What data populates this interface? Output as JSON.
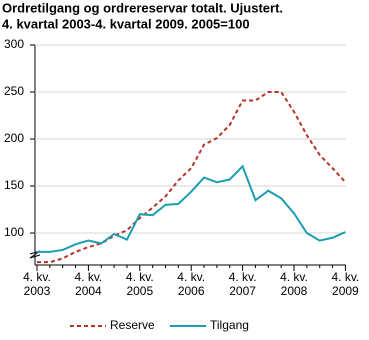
{
  "chart_data": {
    "type": "line",
    "title": "Ordretilgang og ordrereservar totalt. Ujustert.",
    "subtitle": "4. kvartal 2003-4. kvartal 2009. 2005=100",
    "categories": [
      "4. kv. 2003",
      null,
      null,
      null,
      "4. kv. 2004",
      null,
      null,
      null,
      "4. kv. 2005",
      null,
      null,
      null,
      "4. kv. 2006",
      null,
      null,
      null,
      "4. kv. 2007",
      null,
      null,
      null,
      "4. kv. 2008",
      null,
      null,
      null,
      "4. kv. 2009"
    ],
    "series": [
      {
        "name": "Reserve",
        "color": "#b7332a",
        "dashed": true,
        "values": [
          69,
          69,
          73,
          80,
          85,
          89,
          97,
          103,
          116,
          127,
          139,
          156,
          169,
          194,
          201,
          215,
          241,
          241,
          250,
          250,
          229,
          204,
          183,
          169,
          154
        ]
      },
      {
        "name": "Tilgang",
        "color": "#1a9eb3",
        "dashed": false,
        "values": [
          80,
          80,
          82,
          88,
          92,
          89,
          99,
          93,
          120,
          119,
          130,
          131,
          144,
          159,
          154,
          157,
          171,
          135,
          145,
          137,
          121,
          100,
          92,
          95,
          101
        ]
      }
    ],
    "ylim": [
      66,
      300
    ],
    "yticks": [
      100,
      150,
      200,
      250,
      300
    ],
    "grid": true,
    "legend": "bottom"
  }
}
